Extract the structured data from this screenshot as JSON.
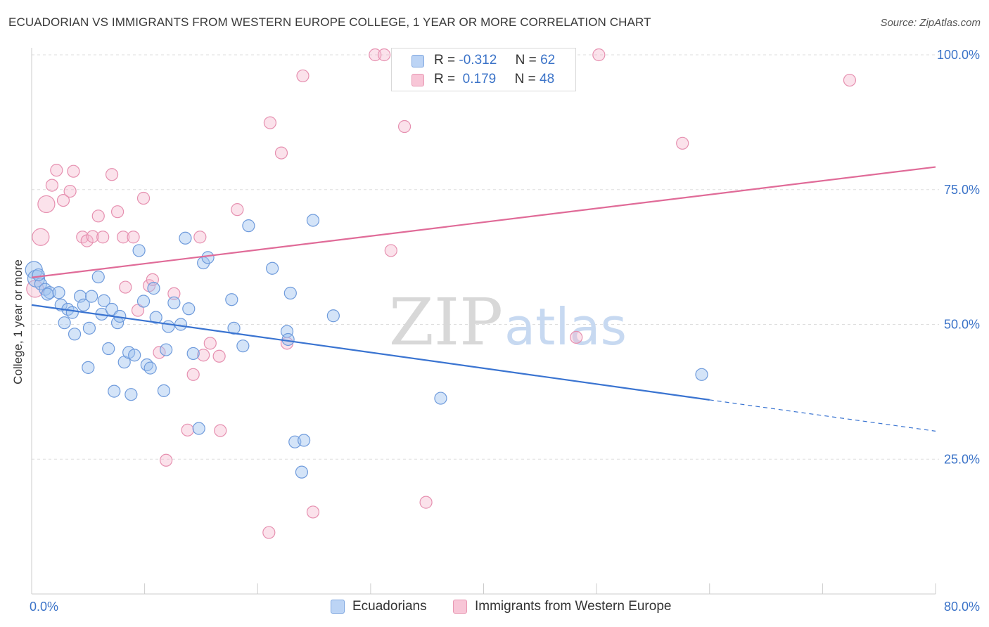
{
  "title": "ECUADORIAN VS IMMIGRANTS FROM WESTERN EUROPE COLLEGE, 1 YEAR OR MORE CORRELATION CHART",
  "source": "Source: ZipAtlas.com",
  "watermark": {
    "zip": "ZIP",
    "atlas": "atlas"
  },
  "legend": {
    "r_label": "R =",
    "n_label": "N =",
    "rows": [
      {
        "r": "-0.312",
        "n": "62",
        "fill": "#bcd4f5",
        "stroke": "#7fa7e0"
      },
      {
        "r": " 0.179",
        "n": "48",
        "fill": "#f8c6d7",
        "stroke": "#e898b3"
      }
    ]
  },
  "bottom_legend": [
    {
      "label": "Ecuadorians",
      "fill": "#bcd4f5",
      "stroke": "#7fa7e0"
    },
    {
      "label": "Immigrants from Western Europe",
      "fill": "#f8c6d7",
      "stroke": "#e898b3"
    }
  ],
  "colors": {
    "blue_line": "#3a74d1",
    "pink_line": "#e06b98",
    "blue_point_fill": "rgba(160,195,240,0.45)",
    "blue_point_stroke": "#6f9bdc",
    "pink_point_fill": "rgba(246,183,205,0.40)",
    "pink_point_stroke": "#e690b0",
    "tick_text": "#3b73c8",
    "grid": "#dddddd",
    "axis": "#cccccc"
  },
  "chart_data": {
    "type": "scatter",
    "title": "ECUADORIAN VS IMMIGRANTS FROM WESTERN EUROPE COLLEGE, 1 YEAR OR MORE CORRELATION CHART",
    "xlabel": "",
    "ylabel": "College, 1 year or more",
    "xlim": [
      0,
      80
    ],
    "ylim": [
      0,
      102
    ],
    "x_tick_labels": [
      {
        "value": 0,
        "label": "0.0%"
      },
      {
        "value": 80,
        "label": "80.0%"
      }
    ],
    "y_tick_labels": [
      {
        "value": 25,
        "label": "25.0%"
      },
      {
        "value": 50,
        "label": "50.0%"
      },
      {
        "value": 75,
        "label": "75.0%"
      },
      {
        "value": 100,
        "label": "100.0%"
      }
    ],
    "grid": true,
    "legend_position": "top-center",
    "series": [
      {
        "name": "Ecuadorians",
        "r": -0.312,
        "n": 62,
        "trend": {
          "x0": 0,
          "y0": 53.6,
          "x1": 60,
          "y1": 36.0,
          "dashed_to_x": 80,
          "dashed_to_y": 30.2
        },
        "points": [
          [
            0.2,
            60.1
          ],
          [
            0.4,
            58.5
          ],
          [
            0.8,
            57.5
          ],
          [
            1.2,
            56.5
          ],
          [
            1.6,
            55.9
          ],
          [
            1.4,
            55.6
          ],
          [
            2.4,
            55.9
          ],
          [
            2.6,
            53.6
          ],
          [
            3.2,
            52.8
          ],
          [
            3.6,
            52.2
          ],
          [
            2.9,
            50.3
          ],
          [
            3.8,
            48.2
          ],
          [
            4.3,
            55.2
          ],
          [
            4.6,
            53.6
          ],
          [
            5.3,
            55.2
          ],
          [
            5.1,
            49.3
          ],
          [
            5.9,
            58.8
          ],
          [
            6.2,
            51.9
          ],
          [
            6.4,
            54.4
          ],
          [
            7.1,
            52.8
          ],
          [
            6.8,
            45.5
          ],
          [
            7.6,
            50.3
          ],
          [
            7.8,
            51.5
          ],
          [
            8.2,
            43.0
          ],
          [
            8.6,
            44.8
          ],
          [
            9.1,
            44.3
          ],
          [
            9.5,
            63.7
          ],
          [
            9.9,
            54.3
          ],
          [
            10.2,
            42.5
          ],
          [
            10.5,
            41.9
          ],
          [
            10.8,
            56.7
          ],
          [
            11.0,
            51.3
          ],
          [
            11.7,
            37.7
          ],
          [
            11.9,
            45.3
          ],
          [
            12.1,
            49.6
          ],
          [
            12.6,
            54.0
          ],
          [
            13.2,
            50.0
          ],
          [
            13.9,
            52.9
          ],
          [
            14.3,
            44.6
          ],
          [
            14.8,
            30.7
          ],
          [
            15.2,
            61.4
          ],
          [
            15.6,
            62.4
          ],
          [
            17.7,
            54.6
          ],
          [
            17.9,
            49.3
          ],
          [
            18.7,
            46.0
          ],
          [
            19.2,
            68.3
          ],
          [
            21.3,
            60.4
          ],
          [
            22.6,
            48.7
          ],
          [
            22.7,
            47.2
          ],
          [
            22.9,
            55.8
          ],
          [
            23.3,
            28.2
          ],
          [
            24.1,
            28.5
          ],
          [
            23.9,
            22.6
          ],
          [
            24.9,
            69.3
          ],
          [
            26.7,
            51.6
          ],
          [
            36.2,
            36.3
          ],
          [
            59.3,
            40.7
          ],
          [
            5.0,
            42.0
          ],
          [
            7.3,
            37.6
          ],
          [
            8.8,
            37.0
          ],
          [
            13.6,
            66.0
          ],
          [
            0.6,
            59.2
          ]
        ]
      },
      {
        "name": "Immigrants from Western Europe",
        "r": 0.179,
        "n": 48,
        "trend": {
          "x0": 0,
          "y0": 58.7,
          "x1": 80,
          "y1": 79.2
        },
        "points": [
          [
            0.3,
            56.6
          ],
          [
            0.8,
            66.2
          ],
          [
            1.3,
            72.3
          ],
          [
            1.8,
            75.8
          ],
          [
            2.2,
            78.6
          ],
          [
            2.8,
            73.0
          ],
          [
            3.4,
            74.7
          ],
          [
            3.7,
            78.4
          ],
          [
            4.5,
            66.2
          ],
          [
            4.9,
            65.5
          ],
          [
            5.4,
            66.3
          ],
          [
            5.9,
            70.1
          ],
          [
            6.3,
            66.2
          ],
          [
            7.1,
            77.8
          ],
          [
            7.6,
            70.9
          ],
          [
            8.1,
            66.2
          ],
          [
            8.3,
            56.9
          ],
          [
            9.0,
            66.2
          ],
          [
            9.4,
            52.6
          ],
          [
            9.9,
            73.4
          ],
          [
            10.4,
            57.2
          ],
          [
            10.7,
            58.3
          ],
          [
            11.3,
            44.8
          ],
          [
            11.9,
            24.8
          ],
          [
            12.6,
            55.7
          ],
          [
            13.8,
            30.4
          ],
          [
            14.3,
            40.7
          ],
          [
            14.9,
            66.2
          ],
          [
            15.2,
            44.3
          ],
          [
            15.8,
            46.5
          ],
          [
            16.6,
            44.1
          ],
          [
            16.7,
            30.3
          ],
          [
            18.2,
            71.3
          ],
          [
            21.1,
            87.4
          ],
          [
            21.0,
            11.4
          ],
          [
            22.1,
            81.8
          ],
          [
            22.6,
            46.5
          ],
          [
            24.0,
            96.1
          ],
          [
            24.9,
            15.2
          ],
          [
            30.4,
            100.0
          ],
          [
            31.2,
            100.0
          ],
          [
            31.8,
            63.7
          ],
          [
            33.0,
            86.7
          ],
          [
            34.9,
            17.0
          ],
          [
            48.2,
            47.6
          ],
          [
            50.2,
            100.0
          ],
          [
            57.6,
            83.6
          ],
          [
            72.4,
            95.3
          ]
        ]
      }
    ]
  }
}
